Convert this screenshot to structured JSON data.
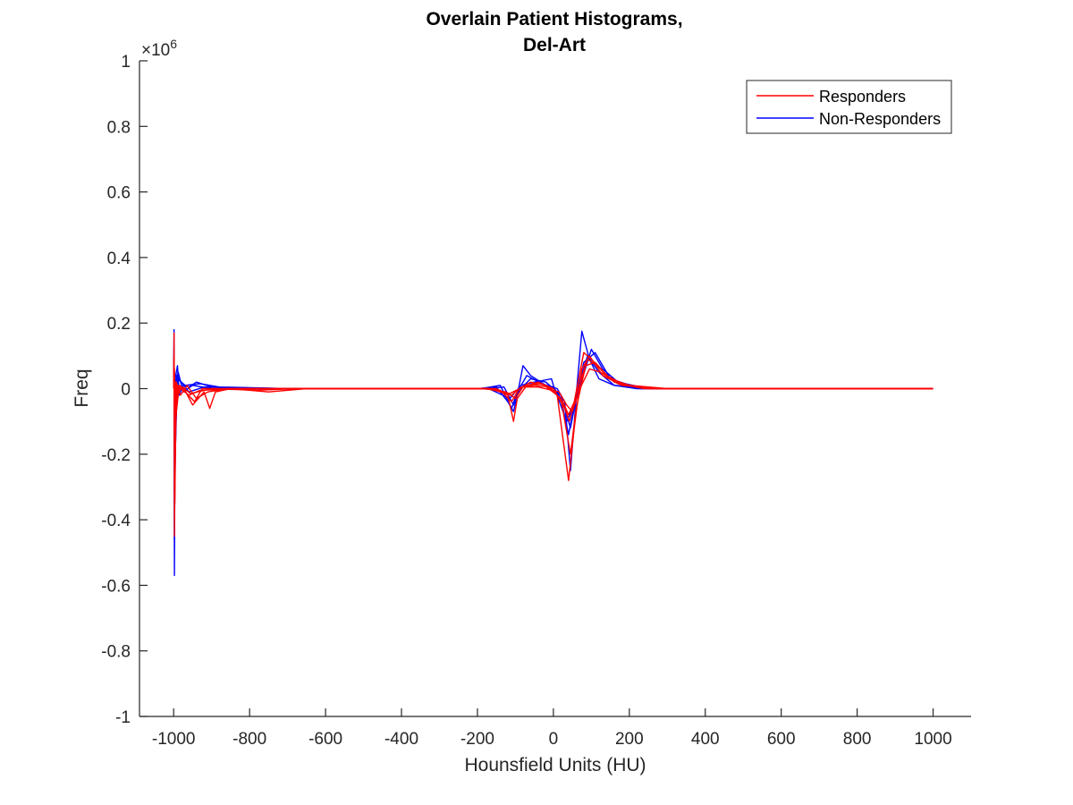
{
  "chart_data": {
    "type": "line",
    "title": [
      "Overlain Patient Histograms,",
      "Del-Art"
    ],
    "xlabel": "Hounsfield Units (HU)",
    "ylabel": "Freq",
    "y_exponent_label": "×10",
    "y_exponent_power": "6",
    "xlim": [
      -1090,
      1100
    ],
    "ylim": [
      -1,
      1
    ],
    "y_multiplier": 1000000,
    "xticks": [
      -1000,
      -800,
      -600,
      -400,
      -200,
      0,
      200,
      400,
      600,
      800,
      1000
    ],
    "xtick_labels": [
      "-1000",
      "-800",
      "-600",
      "-400",
      "-200",
      "0",
      "200",
      "400",
      "600",
      "800",
      "1000"
    ],
    "yticks": [
      -1,
      -0.8,
      -0.6,
      -0.4,
      -0.2,
      0,
      0.2,
      0.4,
      0.6,
      0.8,
      1
    ],
    "ytick_labels": [
      "-1",
      "-0.8",
      "-0.6",
      "-0.4",
      "-0.2",
      "0",
      "0.2",
      "0.4",
      "0.6",
      "0.8",
      "1"
    ],
    "grid": false,
    "legend_position": "top-right",
    "legend": [
      {
        "label": "Responders",
        "color": "#ff0000"
      },
      {
        "label": "Non-Responders",
        "color": "#0000ff"
      }
    ],
    "series": [
      {
        "group": "Non-Responders",
        "color": "#0000ff",
        "points": [
          [
            -1000,
            0
          ],
          [
            -999,
            0.18
          ],
          [
            -998,
            -0.57
          ],
          [
            -996,
            0.03
          ],
          [
            -990,
            0.07
          ],
          [
            -985,
            -0.02
          ],
          [
            -975,
            0.01
          ],
          [
            -960,
            0.005
          ],
          [
            -940,
            0.02
          ],
          [
            -900,
            0.005
          ],
          [
            -850,
            0.002
          ],
          [
            -780,
            0
          ],
          [
            -600,
            0
          ],
          [
            -200,
            0
          ],
          [
            -150,
            0.005
          ],
          [
            -120,
            -0.04
          ],
          [
            -105,
            -0.07
          ],
          [
            -95,
            -0.02
          ],
          [
            -80,
            0.07
          ],
          [
            -60,
            0.04
          ],
          [
            -20,
            0.01
          ],
          [
            0,
            0.005
          ],
          [
            20,
            -0.03
          ],
          [
            40,
            -0.14
          ],
          [
            60,
            -0.02
          ],
          [
            75,
            0.175
          ],
          [
            95,
            0.09
          ],
          [
            120,
            0.03
          ],
          [
            160,
            0.01
          ],
          [
            220,
            0
          ],
          [
            400,
            0
          ],
          [
            1000,
            0
          ]
        ]
      },
      {
        "group": "Non-Responders",
        "color": "#0000ff",
        "points": [
          [
            -1000,
            0
          ],
          [
            -999,
            0.12
          ],
          [
            -998,
            -0.46
          ],
          [
            -995,
            0.02
          ],
          [
            -988,
            0.05
          ],
          [
            -975,
            -0.01
          ],
          [
            -950,
            0.01
          ],
          [
            -900,
            0
          ],
          [
            -600,
            0
          ],
          [
            -190,
            0
          ],
          [
            -140,
            0.01
          ],
          [
            -110,
            -0.06
          ],
          [
            -95,
            -0.01
          ],
          [
            -70,
            0.04
          ],
          [
            -30,
            0.015
          ],
          [
            10,
            0
          ],
          [
            30,
            -0.04
          ],
          [
            45,
            -0.25
          ],
          [
            60,
            -0.03
          ],
          [
            100,
            0.12
          ],
          [
            130,
            0.06
          ],
          [
            170,
            0.02
          ],
          [
            250,
            0
          ],
          [
            1000,
            0
          ]
        ]
      },
      {
        "group": "Non-Responders",
        "color": "#0000ff",
        "points": [
          [
            -1000,
            0
          ],
          [
            -999,
            0.09
          ],
          [
            -997,
            -0.3
          ],
          [
            -992,
            0.04
          ],
          [
            -980,
            0.02
          ],
          [
            -960,
            -0.01
          ],
          [
            -920,
            0.005
          ],
          [
            -700,
            0
          ],
          [
            -180,
            0
          ],
          [
            -130,
            0.005
          ],
          [
            -105,
            -0.05
          ],
          [
            -90,
            -0.005
          ],
          [
            -60,
            0.03
          ],
          [
            -20,
            0.02
          ],
          [
            20,
            -0.02
          ],
          [
            45,
            -0.12
          ],
          [
            65,
            0
          ],
          [
            90,
            0.1
          ],
          [
            120,
            0.05
          ],
          [
            160,
            0.01
          ],
          [
            260,
            0
          ],
          [
            1000,
            0
          ]
        ]
      },
      {
        "group": "Non-Responders",
        "color": "#0000ff",
        "points": [
          [
            -1000,
            0
          ],
          [
            -998,
            0.05
          ],
          [
            -996,
            -0.2
          ],
          [
            -990,
            0.03
          ],
          [
            -970,
            0.01
          ],
          [
            -930,
            0.015
          ],
          [
            -880,
            0.005
          ],
          [
            -700,
            0
          ],
          [
            -170,
            0
          ],
          [
            -115,
            -0.03
          ],
          [
            -85,
            0.01
          ],
          [
            -50,
            0.02
          ],
          [
            -5,
            0.03
          ],
          [
            0,
            0.01
          ],
          [
            35,
            -0.1
          ],
          [
            55,
            -0.05
          ],
          [
            80,
            0.08
          ],
          [
            110,
            0.11
          ],
          [
            150,
            0.03
          ],
          [
            230,
            0
          ],
          [
            1000,
            0
          ]
        ]
      },
      {
        "group": "Responders",
        "color": "#ff0000",
        "points": [
          [
            -1000,
            0
          ],
          [
            -999,
            0.17
          ],
          [
            -998,
            -0.45
          ],
          [
            -995,
            0.02
          ],
          [
            -988,
            -0.01
          ],
          [
            -975,
            0.005
          ],
          [
            -950,
            -0.05
          ],
          [
            -920,
            -0.01
          ],
          [
            -905,
            -0.06
          ],
          [
            -890,
            -0.01
          ],
          [
            -850,
            0
          ],
          [
            -750,
            -0.01
          ],
          [
            -650,
            0
          ],
          [
            -200,
            0
          ],
          [
            -150,
            0
          ],
          [
            -120,
            -0.02
          ],
          [
            -105,
            -0.1
          ],
          [
            -95,
            -0.03
          ],
          [
            -70,
            0.01
          ],
          [
            -30,
            0.015
          ],
          [
            10,
            -0.02
          ],
          [
            40,
            -0.28
          ],
          [
            55,
            -0.12
          ],
          [
            75,
            0.06
          ],
          [
            95,
            0.1
          ],
          [
            130,
            0.04
          ],
          [
            180,
            0.01
          ],
          [
            280,
            0
          ],
          [
            1000,
            0
          ]
        ]
      },
      {
        "group": "Responders",
        "color": "#ff0000",
        "points": [
          [
            -1000,
            0
          ],
          [
            -999,
            0.1
          ],
          [
            -997,
            -0.35
          ],
          [
            -993,
            0.02
          ],
          [
            -982,
            -0.02
          ],
          [
            -965,
            0.01
          ],
          [
            -940,
            -0.03
          ],
          [
            -910,
            -0.01
          ],
          [
            -860,
            0
          ],
          [
            -700,
            0
          ],
          [
            -190,
            0
          ],
          [
            -140,
            -0.005
          ],
          [
            -110,
            -0.04
          ],
          [
            -90,
            0
          ],
          [
            -60,
            0.02
          ],
          [
            -20,
            0.01
          ],
          [
            20,
            -0.03
          ],
          [
            45,
            -0.2
          ],
          [
            60,
            -0.06
          ],
          [
            85,
            0.07
          ],
          [
            110,
            0.08
          ],
          [
            150,
            0.03
          ],
          [
            200,
            0.01
          ],
          [
            300,
            0
          ],
          [
            1000,
            0
          ]
        ]
      },
      {
        "group": "Responders",
        "color": "#ff0000",
        "points": [
          [
            -1000,
            0
          ],
          [
            -998,
            0.06
          ],
          [
            -996,
            -0.15
          ],
          [
            -990,
            0.01
          ],
          [
            -970,
            -0.01
          ],
          [
            -945,
            -0.04
          ],
          [
            -925,
            0
          ],
          [
            -850,
            0
          ],
          [
            -180,
            0
          ],
          [
            -125,
            -0.01
          ],
          [
            -100,
            -0.03
          ],
          [
            -80,
            0.005
          ],
          [
            -40,
            0.02
          ],
          [
            0,
            0
          ],
          [
            30,
            -0.06
          ],
          [
            42,
            -0.1
          ],
          [
            60,
            -0.02
          ],
          [
            90,
            0.09
          ],
          [
            115,
            0.07
          ],
          [
            160,
            0.02
          ],
          [
            250,
            0
          ],
          [
            1000,
            0
          ]
        ]
      },
      {
        "group": "Responders",
        "color": "#ff0000",
        "points": [
          [
            -1000,
            0
          ],
          [
            -998,
            0.04
          ],
          [
            -995,
            -0.1
          ],
          [
            -988,
            0.005
          ],
          [
            -960,
            -0.02
          ],
          [
            -930,
            -0.005
          ],
          [
            -800,
            0
          ],
          [
            -170,
            0
          ],
          [
            -110,
            -0.02
          ],
          [
            -85,
            0.005
          ],
          [
            -50,
            0.01
          ],
          [
            -10,
            0.005
          ],
          [
            25,
            -0.04
          ],
          [
            40,
            -0.08
          ],
          [
            55,
            -0.04
          ],
          [
            80,
            0.11
          ],
          [
            100,
            0.09
          ],
          [
            140,
            0.04
          ],
          [
            190,
            0.01
          ],
          [
            270,
            0
          ],
          [
            1000,
            0
          ]
        ]
      },
      {
        "group": "Responders",
        "color": "#ff0000",
        "points": [
          [
            -1000,
            0
          ],
          [
            -998,
            0.03
          ],
          [
            -994,
            -0.08
          ],
          [
            -985,
            0.01
          ],
          [
            -955,
            -0.015
          ],
          [
            -900,
            0
          ],
          [
            -780,
            -0.005
          ],
          [
            -680,
            0
          ],
          [
            -160,
            0
          ],
          [
            -115,
            -0.015
          ],
          [
            -80,
            0.005
          ],
          [
            -40,
            0.005
          ],
          [
            15,
            -0.01
          ],
          [
            35,
            -0.05
          ],
          [
            50,
            -0.07
          ],
          [
            70,
            0
          ],
          [
            95,
            0.06
          ],
          [
            125,
            0.05
          ],
          [
            170,
            0.015
          ],
          [
            240,
            0
          ],
          [
            1000,
            0
          ]
        ]
      }
    ]
  }
}
